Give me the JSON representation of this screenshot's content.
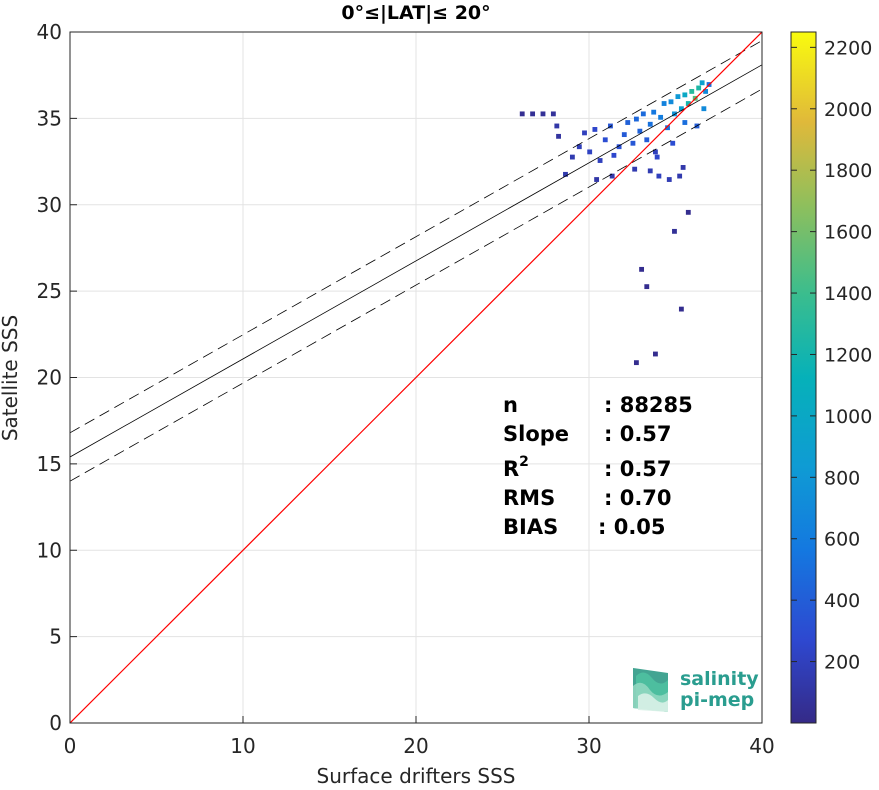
{
  "chart_data": {
    "type": "scatter",
    "subtype": "density-heatmap",
    "title": "0°≤|LAT|≤ 20°",
    "xlabel": "Surface drifters SSS",
    "ylabel": "Satellite SSS",
    "xlim": [
      0,
      40
    ],
    "ylim": [
      0,
      40
    ],
    "xticks": [
      "0",
      "10",
      "20",
      "30",
      "40"
    ],
    "yticks": [
      "0",
      "5",
      "10",
      "15",
      "20",
      "25",
      "30",
      "35",
      "40"
    ],
    "grid": true,
    "reference_line": {
      "x": [
        0,
        40
      ],
      "y": [
        0,
        40
      ],
      "color": "#ff0000"
    },
    "fit_line": {
      "x": [
        0,
        40
      ],
      "y": [
        15.4,
        38.1
      ],
      "color": "#000000"
    },
    "upper_band": {
      "x": [
        0,
        40
      ],
      "y": [
        16.8,
        39.5
      ],
      "style": "dashed"
    },
    "lower_band": {
      "x": [
        0,
        40
      ],
      "y": [
        14.0,
        36.7
      ],
      "style": "dashed"
    },
    "density_cells": [
      [
        26.1,
        35.3,
        40
      ],
      [
        26.7,
        35.3,
        50
      ],
      [
        27.3,
        35.3,
        60
      ],
      [
        27.9,
        35.3,
        70
      ],
      [
        28.1,
        34.6,
        120
      ],
      [
        28.2,
        34.0,
        90
      ],
      [
        28.6,
        31.8,
        140
      ],
      [
        29.0,
        32.8,
        150
      ],
      [
        29.4,
        33.4,
        180
      ],
      [
        29.7,
        34.2,
        200
      ],
      [
        30.0,
        33.1,
        220
      ],
      [
        30.3,
        34.4,
        250
      ],
      [
        30.6,
        32.6,
        200
      ],
      [
        30.9,
        33.8,
        300
      ],
      [
        31.2,
        34.6,
        350
      ],
      [
        31.4,
        32.9,
        260
      ],
      [
        31.7,
        33.4,
        320
      ],
      [
        32.0,
        34.1,
        380
      ],
      [
        32.2,
        34.8,
        420
      ],
      [
        32.5,
        33.6,
        360
      ],
      [
        32.7,
        35.0,
        460
      ],
      [
        32.9,
        34.3,
        430
      ],
      [
        33.1,
        35.3,
        480
      ],
      [
        33.3,
        33.8,
        380
      ],
      [
        33.5,
        34.7,
        520
      ],
      [
        33.7,
        35.4,
        560
      ],
      [
        33.9,
        32.8,
        250
      ],
      [
        34.1,
        35.1,
        600
      ],
      [
        34.3,
        35.9,
        640
      ],
      [
        34.5,
        34.5,
        520
      ],
      [
        34.7,
        36.0,
        700
      ],
      [
        34.9,
        35.3,
        760
      ],
      [
        35.1,
        36.3,
        820
      ],
      [
        35.3,
        35.6,
        900
      ],
      [
        35.5,
        36.4,
        1000
      ],
      [
        35.7,
        35.9,
        1200
      ],
      [
        35.9,
        36.6,
        1300
      ],
      [
        36.1,
        36.2,
        1500
      ],
      [
        36.3,
        36.8,
        1250
      ],
      [
        36.5,
        37.1,
        900
      ],
      [
        36.7,
        36.6,
        700
      ],
      [
        36.9,
        37.0,
        500
      ],
      [
        33.5,
        32.0,
        160
      ],
      [
        34.0,
        31.7,
        200
      ],
      [
        34.6,
        31.5,
        170
      ],
      [
        35.2,
        31.7,
        140
      ],
      [
        35.4,
        32.2,
        130
      ],
      [
        34.8,
        33.6,
        300
      ],
      [
        35.5,
        34.8,
        500
      ],
      [
        36.2,
        34.6,
        400
      ],
      [
        36.6,
        35.6,
        700
      ],
      [
        32.6,
        32.1,
        150
      ],
      [
        31.3,
        31.7,
        130
      ],
      [
        30.4,
        31.5,
        120
      ],
      [
        33.8,
        33.1,
        200
      ],
      [
        34.9,
        28.5,
        60
      ],
      [
        35.7,
        29.6,
        30
      ],
      [
        35.3,
        24.0,
        30
      ],
      [
        33.0,
        26.3,
        30
      ],
      [
        33.3,
        25.3,
        30
      ],
      [
        32.7,
        20.9,
        30
      ],
      [
        33.8,
        21.4,
        30
      ]
    ],
    "colorbar": {
      "min": 0,
      "max": 2250,
      "ticks": [
        "200",
        "400",
        "600",
        "800",
        "1000",
        "1200",
        "1400",
        "1600",
        "1800",
        "2000",
        "2200"
      ],
      "colormap": "parula"
    },
    "annotation": {
      "rows": [
        {
          "label": "n",
          "value": ": 88285"
        },
        {
          "label": "Slope",
          "value": ": 0.57"
        },
        {
          "label": "R",
          "sup": "2",
          "value": ": 0.57"
        },
        {
          "label": "RMS",
          "value": ": 0.70"
        },
        {
          "label": "BIAS",
          "value": ": 0.05"
        }
      ]
    }
  },
  "logo": {
    "line1": "salinity",
    "line2": "pi-mep",
    "colors": {
      "text": "#2a9d8f",
      "mark": "#37b89a"
    }
  }
}
